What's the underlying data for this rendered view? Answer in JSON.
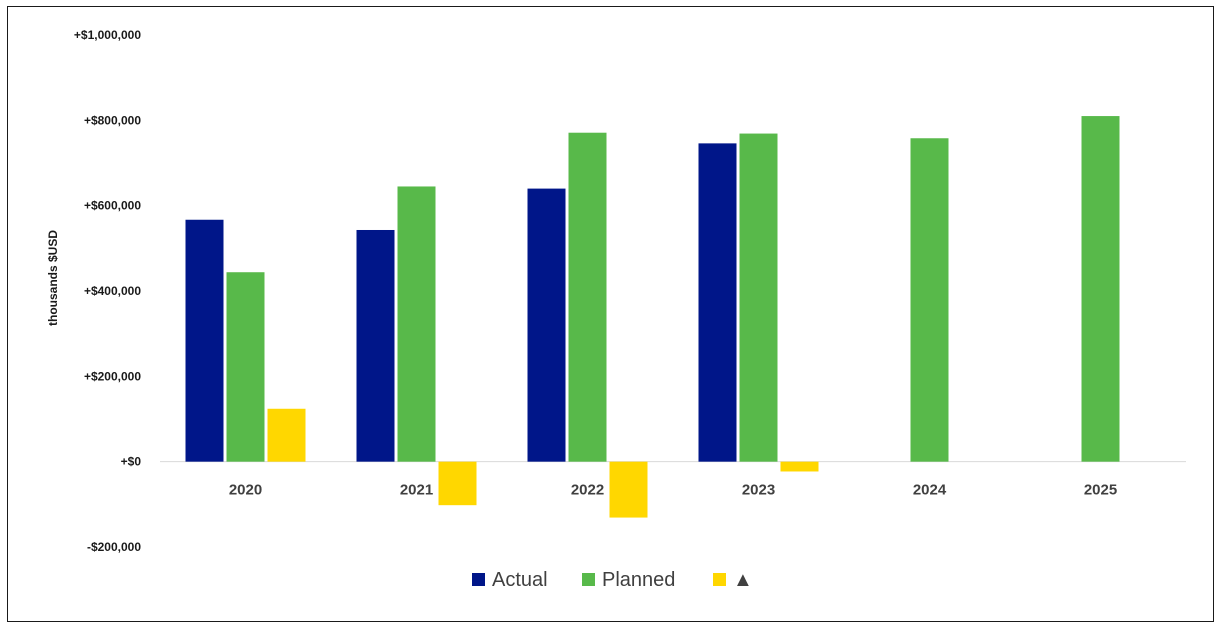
{
  "chart_data": {
    "type": "bar",
    "categories": [
      "2020",
      "2021",
      "2022",
      "2023",
      "2024",
      "2025"
    ],
    "series": [
      {
        "name": "Actual",
        "color": "#001689",
        "values": [
          567000,
          543000,
          640000,
          746000,
          null,
          null
        ]
      },
      {
        "name": "Planned",
        "color": "#58b94a",
        "values": [
          444000,
          645000,
          771000,
          769000,
          758000,
          810000
        ]
      },
      {
        "name": "▲",
        "color": "#ffd700",
        "values": [
          124000,
          -102000,
          -131000,
          -23000,
          null,
          null
        ]
      }
    ],
    "title": "",
    "xlabel": "",
    "ylabel": "thousands $USD",
    "ylim": [
      -200000,
      1000000
    ],
    "yticks": [
      1000000,
      800000,
      600000,
      400000,
      200000,
      0,
      -200000
    ],
    "ytick_labels": [
      "+$1,000,000",
      "+$800,000",
      "+$600,000",
      "+$400,000",
      "+$200,000",
      "+$0",
      "-$200,000"
    ],
    "grid": false,
    "legend_position": "bottom",
    "axis_color": "#d9d9d9"
  }
}
